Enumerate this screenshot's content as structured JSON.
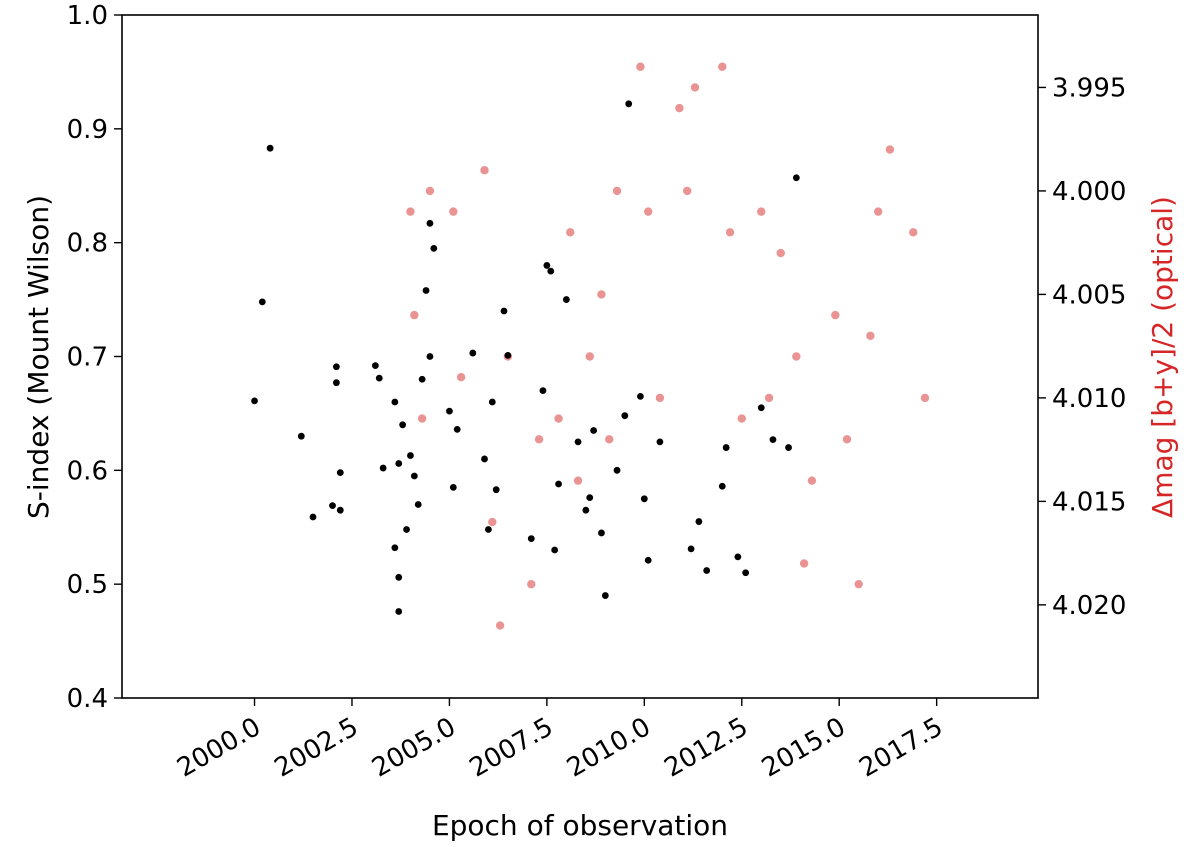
{
  "chart_data": {
    "type": "scatter",
    "xlabel": "Epoch of observation",
    "ylabel_left": "S-index (Mount Wilson)",
    "ylabel_right": "Δmag [b+y]/2 (optical)",
    "xlim": [
      1996.6,
      2020.1
    ],
    "ylim_left": [
      0.4,
      1.0
    ],
    "ylim_right_inverted": [
      4.0245,
      3.9915
    ],
    "x_ticks": [
      2000.0,
      2002.5,
      2005.0,
      2007.5,
      2010.0,
      2012.5,
      2015.0,
      2017.5
    ],
    "x_tick_labels": [
      "2000.0",
      "2002.5",
      "2005.0",
      "2007.5",
      "2010.0",
      "2012.5",
      "2015.0",
      "2017.5"
    ],
    "y_left_ticks": [
      0.4,
      0.5,
      0.6,
      0.7,
      0.8,
      0.9,
      1.0
    ],
    "y_left_tick_labels": [
      "0.4",
      "0.5",
      "0.6",
      "0.7",
      "0.8",
      "0.9",
      "1.0"
    ],
    "y_right_ticks": [
      3.995,
      4.0,
      4.005,
      4.01,
      4.015,
      4.02
    ],
    "y_right_tick_labels": [
      "3.995",
      "4.000",
      "4.005",
      "4.010",
      "4.015",
      "4.020"
    ],
    "grid": false,
    "colors": {
      "s_index": "#000000",
      "optical": "#d62728",
      "right_axis_label": "#d62728"
    },
    "series": [
      {
        "axis": "left",
        "x": [
          2000.0,
          2000.2,
          2000.4,
          2001.2,
          2001.5,
          2002.0,
          2002.1,
          2002.1,
          2002.2,
          2002.2,
          2003.1,
          2003.2,
          2003.3,
          2003.6,
          2003.6,
          2003.7,
          2003.7,
          2003.7,
          2003.8,
          2003.9,
          2004.0,
          2004.1,
          2004.2,
          2004.3,
          2004.4,
          2004.5,
          2004.5,
          2004.6,
          2005.0,
          2005.1,
          2005.2,
          2005.6,
          2005.9,
          2006.0,
          2006.1,
          2006.2,
          2006.4,
          2006.5,
          2007.1,
          2007.4,
          2007.5,
          2007.6,
          2007.7,
          2007.8,
          2008.0,
          2008.3,
          2008.5,
          2008.6,
          2008.7,
          2008.9,
          2009.0,
          2009.3,
          2009.5,
          2009.6,
          2009.9,
          2010.0,
          2010.1,
          2010.4,
          2011.2,
          2011.4,
          2011.6,
          2012.0,
          2012.1,
          2012.4,
          2012.6,
          2013.0,
          2013.3,
          2013.7,
          2013.9
        ],
        "y": [
          0.661,
          0.748,
          0.883,
          0.63,
          0.559,
          0.569,
          0.677,
          0.691,
          0.598,
          0.565,
          0.692,
          0.681,
          0.602,
          0.66,
          0.532,
          0.506,
          0.476,
          0.606,
          0.64,
          0.548,
          0.613,
          0.595,
          0.57,
          0.68,
          0.758,
          0.817,
          0.7,
          0.795,
          0.652,
          0.585,
          0.636,
          0.703,
          0.61,
          0.548,
          0.66,
          0.583,
          0.74,
          0.701,
          0.54,
          0.67,
          0.78,
          0.775,
          0.53,
          0.588,
          0.75,
          0.625,
          0.565,
          0.576,
          0.635,
          0.545,
          0.49,
          0.6,
          0.648,
          0.922,
          0.665,
          0.575,
          0.521,
          0.625,
          0.531,
          0.555,
          0.512,
          0.586,
          0.62,
          0.524,
          0.51,
          0.655,
          0.627,
          0.62,
          0.857
        ]
      },
      {
        "axis": "right",
        "x": [
          2004.0,
          2004.1,
          2004.3,
          2004.5,
          2005.1,
          2005.3,
          2005.9,
          2006.1,
          2006.3,
          2006.5,
          2007.1,
          2007.3,
          2007.8,
          2008.1,
          2008.3,
          2008.6,
          2008.9,
          2009.1,
          2009.3,
          2009.9,
          2010.1,
          2010.4,
          2010.9,
          2011.1,
          2011.3,
          2012.0,
          2012.2,
          2012.5,
          2013.0,
          2013.2,
          2013.5,
          2013.9,
          2014.1,
          2014.3,
          2014.9,
          2015.2,
          2015.5,
          2015.8,
          2016.0,
          2016.3,
          2016.9,
          2017.2
        ],
        "y": [
          4.001,
          4.006,
          4.011,
          4.0,
          4.001,
          4.009,
          3.999,
          4.016,
          4.021,
          4.008,
          4.019,
          4.012,
          4.011,
          4.002,
          4.014,
          4.008,
          4.005,
          4.012,
          4.0,
          3.994,
          4.001,
          4.01,
          3.996,
          4.0,
          3.995,
          3.994,
          4.002,
          4.011,
          4.001,
          4.01,
          4.003,
          4.008,
          4.018,
          4.014,
          4.006,
          4.012,
          4.019,
          4.007,
          4.001,
          3.998,
          4.002,
          4.01
        ]
      }
    ]
  }
}
